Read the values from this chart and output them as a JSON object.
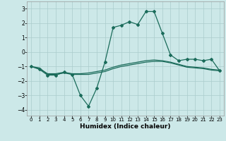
{
  "xlabel": "Humidex (Indice chaleur)",
  "xlim": [
    -0.5,
    23.5
  ],
  "ylim": [
    -4.4,
    3.5
  ],
  "yticks": [
    -4,
    -3,
    -2,
    -1,
    0,
    1,
    2,
    3
  ],
  "xticks": [
    0,
    1,
    2,
    3,
    4,
    5,
    6,
    7,
    8,
    9,
    10,
    11,
    12,
    13,
    14,
    15,
    16,
    17,
    18,
    19,
    20,
    21,
    22,
    23
  ],
  "background_color": "#cce8e8",
  "grid_color": "#aacccc",
  "line_color": "#1a6b5a",
  "line1_x": [
    0,
    1,
    2,
    3,
    4,
    5,
    6,
    7,
    8,
    9,
    10,
    11,
    12,
    13,
    14,
    15,
    16,
    17,
    18,
    19,
    20,
    21,
    22,
    23
  ],
  "line1_y": [
    -1.0,
    -1.2,
    -1.6,
    -1.6,
    -1.4,
    -1.55,
    -3.0,
    -3.75,
    -2.5,
    -0.7,
    1.7,
    1.85,
    2.1,
    1.9,
    2.8,
    2.8,
    1.3,
    -0.2,
    -0.6,
    -0.5,
    -0.5,
    -0.6,
    -0.5,
    -1.3
  ],
  "line2_x": [
    0,
    1,
    2,
    3,
    4,
    5,
    6,
    7,
    8,
    9,
    10,
    11,
    12,
    13,
    14,
    15,
    16,
    17,
    18,
    19,
    20,
    21,
    22,
    23
  ],
  "line2_y": [
    -1.0,
    -1.15,
    -1.5,
    -1.5,
    -1.4,
    -1.5,
    -1.5,
    -1.45,
    -1.35,
    -1.25,
    -1.05,
    -0.9,
    -0.8,
    -0.7,
    -0.6,
    -0.55,
    -0.6,
    -0.7,
    -0.85,
    -1.0,
    -1.05,
    -1.1,
    -1.2,
    -1.25
  ],
  "line3_x": [
    0,
    1,
    2,
    3,
    4,
    5,
    6,
    7,
    8,
    9,
    10,
    11,
    12,
    13,
    14,
    15,
    16,
    17,
    18,
    19,
    20,
    21,
    22,
    23
  ],
  "line3_y": [
    -1.0,
    -1.1,
    -1.55,
    -1.55,
    -1.45,
    -1.55,
    -1.55,
    -1.55,
    -1.45,
    -1.35,
    -1.15,
    -1.0,
    -0.9,
    -0.8,
    -0.7,
    -0.65,
    -0.65,
    -0.75,
    -0.9,
    -1.05,
    -1.1,
    -1.15,
    -1.25,
    -1.3
  ]
}
